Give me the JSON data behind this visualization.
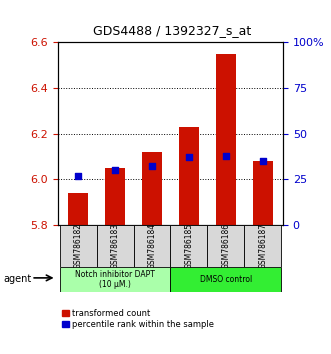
{
  "title": "GDS4488 / 1392327_s_at",
  "samples": [
    "GSM786182",
    "GSM786183",
    "GSM786184",
    "GSM786185",
    "GSM786186",
    "GSM786187"
  ],
  "red_values": [
    5.94,
    6.05,
    6.12,
    6.23,
    6.55,
    6.08
  ],
  "blue_values_pct": [
    27,
    30,
    32,
    37,
    38,
    35
  ],
  "ylim_left": [
    5.8,
    6.6
  ],
  "ylim_right": [
    0,
    100
  ],
  "yticks_left": [
    5.8,
    6.0,
    6.2,
    6.4,
    6.6
  ],
  "yticks_right": [
    0,
    25,
    50,
    75,
    100
  ],
  "ytick_labels_right": [
    "0",
    "25",
    "50",
    "75",
    "100%"
  ],
  "bar_bottom": 5.8,
  "red_color": "#CC1100",
  "blue_color": "#0000CC",
  "agent_groups": [
    {
      "label": "Notch inhibitor DAPT\n(10 μM.)",
      "color": "#AAFFAA",
      "start": 0,
      "end": 3
    },
    {
      "label": "DMSO control",
      "color": "#33EE33",
      "start": 3,
      "end": 6
    }
  ],
  "legend_red": "transformed count",
  "legend_blue": "percentile rank within the sample",
  "agent_label": "agent",
  "bar_width": 0.55,
  "grid_lines": [
    6.0,
    6.2,
    6.4
  ],
  "sample_box_color": "#D8D8D8",
  "title_fontsize": 9,
  "axis_fontsize": 8,
  "label_fontsize": 6
}
